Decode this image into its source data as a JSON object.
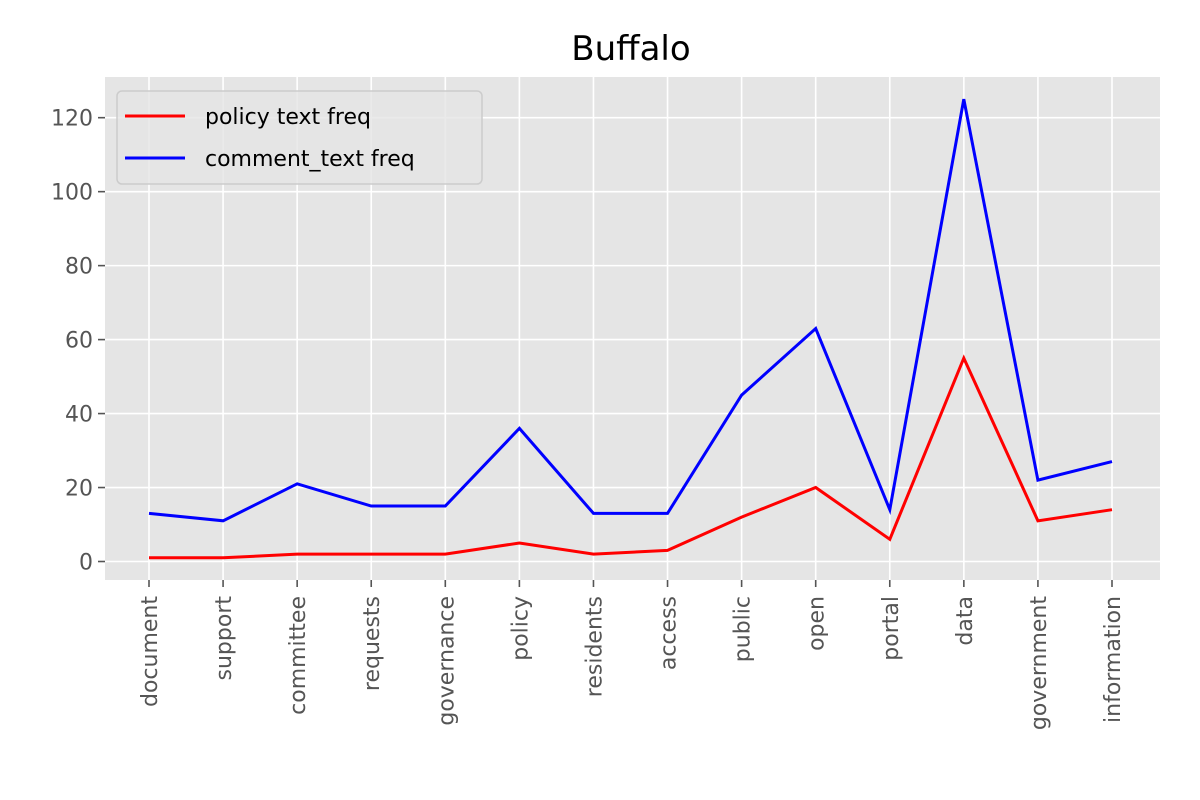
{
  "chart_data": {
    "type": "line",
    "title": "Buffalo",
    "xlabel": "",
    "ylabel": "",
    "categories": [
      "document",
      "support",
      "committee",
      "requests",
      "governance",
      "policy",
      "residents",
      "access",
      "public",
      "open",
      "portal",
      "data",
      "government",
      "information"
    ],
    "series": [
      {
        "name": "policy text freq",
        "color": "#ff0000",
        "values": [
          1,
          1,
          2,
          2,
          2,
          5,
          2,
          3,
          12,
          20,
          6,
          55,
          11,
          14
        ]
      },
      {
        "name": "comment_text freq",
        "color": "#0000ff",
        "values": [
          13,
          11,
          21,
          15,
          15,
          36,
          13,
          13,
          45,
          63,
          14,
          125,
          22,
          27
        ]
      }
    ],
    "yticks": [
      0,
      20,
      40,
      60,
      80,
      100,
      120
    ],
    "ylim": [
      -5,
      131
    ],
    "grid": true,
    "legend_position": "upper-left",
    "background": "#e5e5e5"
  }
}
